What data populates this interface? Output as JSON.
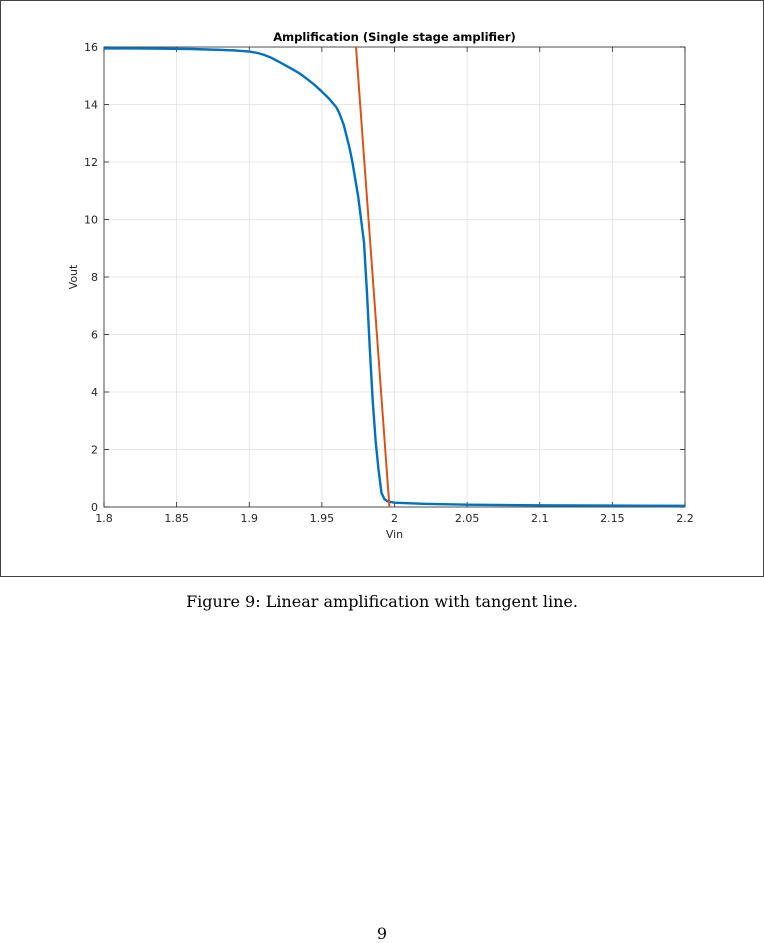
{
  "chart_data": {
    "type": "line",
    "title": "Amplification (Single stage amplifier)",
    "xlabel": "Vin",
    "ylabel": "Vout",
    "xlim": [
      1.8,
      2.2
    ],
    "ylim": [
      0,
      16
    ],
    "xticks": [
      1.8,
      1.85,
      1.9,
      1.95,
      2,
      2.05,
      2.1,
      2.15,
      2.2
    ],
    "xtick_labels": [
      "1.8",
      "1.85",
      "1.9",
      "1.95",
      "2",
      "2.05",
      "2.1",
      "2.15",
      "2.2"
    ],
    "yticks": [
      0,
      2,
      4,
      6,
      8,
      10,
      12,
      14,
      16
    ],
    "ytick_labels": [
      "0",
      "2",
      "4",
      "6",
      "8",
      "10",
      "12",
      "14",
      "16"
    ],
    "grid": true,
    "legend": "none",
    "series": [
      {
        "color": "#0072BD",
        "x": [
          1.8,
          1.82,
          1.84,
          1.86,
          1.88,
          1.89,
          1.9,
          1.905,
          1.91,
          1.915,
          1.92,
          1.925,
          1.93,
          1.935,
          1.94,
          1.945,
          1.95,
          1.955,
          1.96,
          1.962,
          1.965,
          1.967,
          1.969,
          1.971,
          1.973,
          1.975,
          1.977,
          1.979,
          1.981,
          1.983,
          1.985,
          1.987,
          1.989,
          1.991,
          1.993,
          1.995,
          2.0,
          2.02,
          2.05,
          2.1,
          2.15,
          2.2
        ],
        "y": [
          15.95,
          15.95,
          15.94,
          15.93,
          15.9,
          15.88,
          15.84,
          15.8,
          15.73,
          15.63,
          15.5,
          15.36,
          15.22,
          15.07,
          14.88,
          14.68,
          14.45,
          14.2,
          13.9,
          13.7,
          13.3,
          12.9,
          12.5,
          12.0,
          11.4,
          10.8,
          10.0,
          9.2,
          7.5,
          5.5,
          3.7,
          2.3,
          1.3,
          0.5,
          0.28,
          0.2,
          0.15,
          0.11,
          0.08,
          0.06,
          0.05,
          0.04
        ]
      },
      {
        "color": "#D95319",
        "x": [
          1.9735,
          1.9965
        ],
        "y": [
          16.0,
          0.0
        ]
      }
    ]
  },
  "caption": "Figure 9: Linear amplification with tangent line.",
  "page_number": "9"
}
